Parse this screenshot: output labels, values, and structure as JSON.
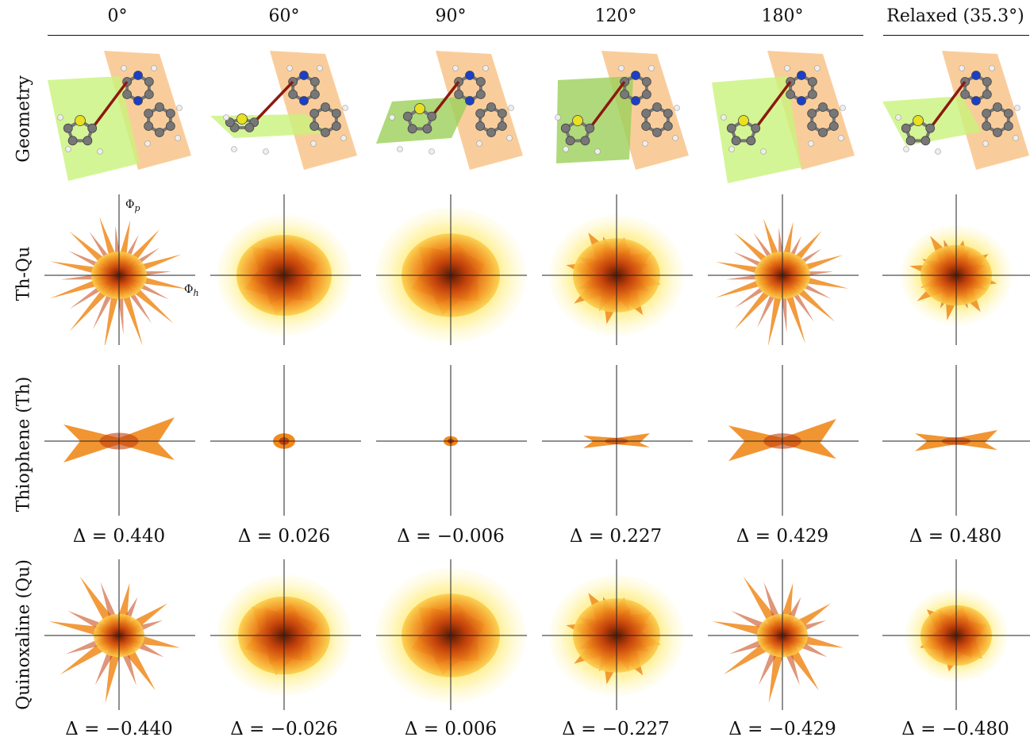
{
  "columns": [
    "0°",
    "60°",
    "90°",
    "120°",
    "180°",
    "Relaxed (35.3°)"
  ],
  "rows": {
    "geometry": "Geometry",
    "thqu": "Th-Qu",
    "th": "Thiophene (Th)",
    "qu": "Quinoxaline (Qu)"
  },
  "axis_labels": {
    "vertical": "Φp",
    "horizontal": "Φh"
  },
  "delta_thiophene": [
    "Δ = 0.440",
    "Δ = 0.026",
    "Δ = −0.006",
    "Δ = 0.227",
    "Δ = 0.429",
    "Δ = 0.480"
  ],
  "delta_quinoxaline": [
    "Δ = −0.440",
    "Δ = −0.026",
    "Δ = 0.006",
    "Δ = −0.227",
    "Δ = −0.429",
    "Δ = −0.480"
  ],
  "colors": {
    "dark": "#4a0f02",
    "mid": "#c4400a",
    "orange": "#f08a1c",
    "light": "#fcd04a",
    "pale": "#fff2a0",
    "plane_green": "#c9f27a",
    "plane_orange": "#f8c890",
    "bond": "#8b1a10"
  }
}
